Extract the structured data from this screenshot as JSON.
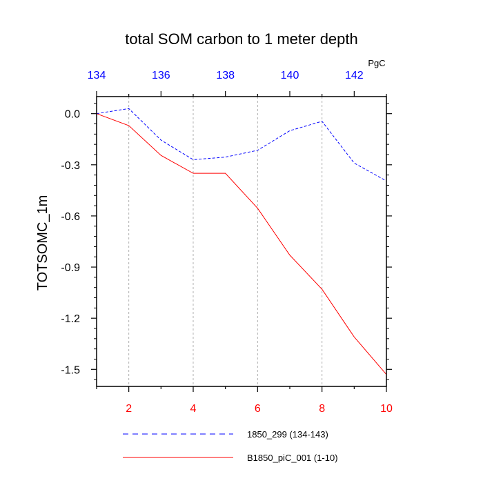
{
  "chart_data": {
    "type": "line",
    "title": "total SOM carbon to 1 meter depth",
    "ylabel": "TOTSOMC_1m",
    "units_label": "PgC",
    "ylim": [
      -1.6,
      0.1
    ],
    "y_ticks": [
      "0.0",
      "-0.3",
      "-0.6",
      "-0.9",
      "-1.2",
      "-1.5"
    ],
    "y_tick_values": [
      0.0,
      -0.3,
      -0.6,
      -0.9,
      -1.2,
      -1.5
    ],
    "x_bottom": {
      "range": [
        1,
        10
      ],
      "ticks": [
        "2",
        "4",
        "6",
        "8",
        "10"
      ],
      "tick_values": [
        2,
        4,
        6,
        8,
        10
      ],
      "color": "#ff0000"
    },
    "x_top": {
      "range": [
        134,
        143
      ],
      "ticks": [
        "134",
        "136",
        "138",
        "140",
        "142"
      ],
      "tick_values": [
        134,
        136,
        138,
        140,
        142
      ],
      "color": "#0000ff"
    },
    "grid": "vertical-dashed",
    "series": [
      {
        "name": "1850_299 (134-143)",
        "axis": "top",
        "color": "#0000ff",
        "dash": "dashed",
        "x": [
          134,
          135,
          136,
          137,
          138,
          139,
          140,
          141,
          142,
          143
        ],
        "values": [
          0.0,
          0.03,
          -0.155,
          -0.27,
          -0.255,
          -0.215,
          -0.1,
          -0.045,
          -0.29,
          -0.395
        ]
      },
      {
        "name": "B1850_piC_001 (1-10)",
        "axis": "bottom",
        "color": "#ff0000",
        "dash": "solid",
        "x": [
          1,
          2,
          3,
          4,
          5,
          6,
          7,
          8,
          9,
          10
        ],
        "values": [
          0.0,
          -0.07,
          -0.245,
          -0.35,
          -0.35,
          -0.555,
          -0.83,
          -1.03,
          -1.31,
          -1.53
        ]
      }
    ]
  }
}
